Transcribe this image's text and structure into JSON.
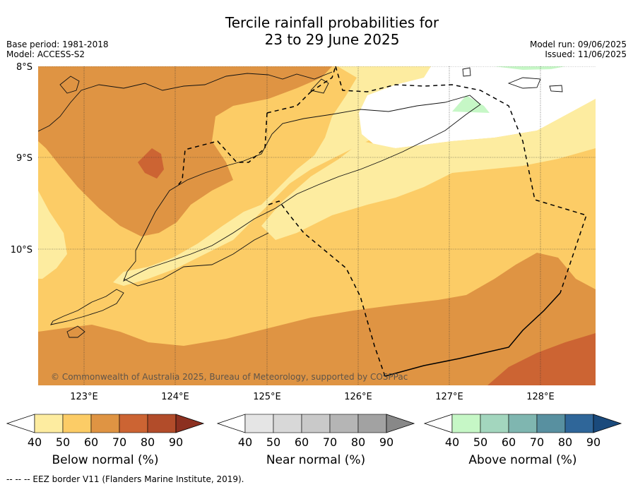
{
  "title_line1": "Tercile rainfall probabilities for",
  "title_line2": "23 to 29 June 2025",
  "base_period": "Base period: 1981-2018",
  "model": "Model: ACCESS-S2",
  "model_run": "Model run: 09/06/2025",
  "issued": "Issued: 11/06/2025",
  "lat_labels": [
    "8°S",
    "9°S",
    "10°S"
  ],
  "lon_labels": [
    "123°E",
    "124°E",
    "125°E",
    "126°E",
    "127°E",
    "128°E"
  ],
  "copyright": "© Commonwealth of Australia 2025, Bureau of Meteorology, supported by COSPPac",
  "colors": {
    "below": [
      "#fdeca0",
      "#fccc66",
      "#df9443",
      "#cc6433",
      "#b24c2a",
      "#8c3020"
    ],
    "near": [
      "#e5e5e5",
      "#d8d8d8",
      "#c9c9c9",
      "#b5b5b5",
      "#a2a2a2",
      "#888888"
    ],
    "above": [
      "#c6f7c6",
      "#a3d6be",
      "#7fb6b0",
      "#5890a0",
      "#2f6699",
      "#1a4a7c"
    ]
  },
  "colorbars": [
    {
      "title": "Below normal (%)",
      "ticks": [
        "40",
        "50",
        "60",
        "70",
        "80",
        "90"
      ]
    },
    {
      "title": "Near normal (%)",
      "ticks": [
        "40",
        "50",
        "60",
        "70",
        "80",
        "90"
      ]
    },
    {
      "title": "Above normal (%)",
      "ticks": [
        "40",
        "50",
        "60",
        "70",
        "80",
        "90"
      ]
    }
  ],
  "footer": "--  --  -- EEZ border V11 (Flanders Marine Institute, 2019)."
}
